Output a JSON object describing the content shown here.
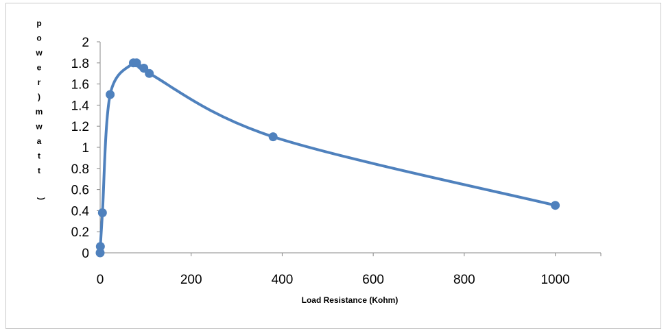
{
  "chart_data": {
    "type": "scatter",
    "title": "",
    "xlabel": "Load Resistance (Kohm)",
    "ylabel": "power (mwatt)",
    "xlim": [
      0,
      1100
    ],
    "ylim": [
      0,
      2
    ],
    "xticks": [
      "0",
      "200",
      "400",
      "600",
      "800",
      "1000"
    ],
    "yticks": [
      "0",
      "0.2",
      "0.4",
      "0.6",
      "0.8",
      "1",
      "1.2",
      "1.4",
      "1.6",
      "1.8",
      "2"
    ],
    "grid": false,
    "legend": "none",
    "smooth_line": true,
    "series": [
      {
        "color": "#4f81bd",
        "points": [
          {
            "x": 0,
            "y": 0
          },
          {
            "x": 0.5,
            "y": 0.06
          },
          {
            "x": 5,
            "y": 0.38
          },
          {
            "x": 22,
            "y": 1.5
          },
          {
            "x": 73,
            "y": 1.8
          },
          {
            "x": 80,
            "y": 1.8
          },
          {
            "x": 96,
            "y": 1.75
          },
          {
            "x": 108,
            "y": 1.7
          },
          {
            "x": 380,
            "y": 1.1
          },
          {
            "x": 1000,
            "y": 0.45
          }
        ]
      }
    ]
  },
  "ylabel_vertical": {
    "letters": [
      "p",
      "o",
      "w",
      "e",
      "r",
      ")",
      "m",
      "w",
      "a",
      "t",
      "t"
    ],
    "paren": "("
  }
}
